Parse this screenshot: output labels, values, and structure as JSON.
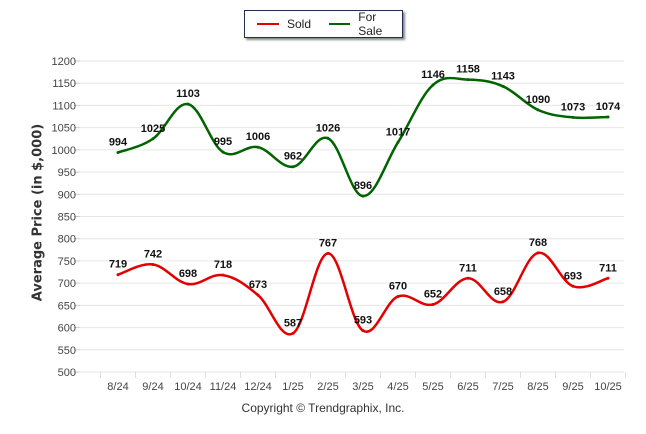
{
  "chart_data": {
    "type": "line",
    "title": "",
    "xlabel": "",
    "ylabel": "Average Price (in $,000)",
    "ylim": [
      500,
      1200
    ],
    "yticks": [
      500,
      550,
      600,
      650,
      700,
      750,
      800,
      850,
      900,
      950,
      1000,
      1050,
      1100,
      1150,
      1200
    ],
    "grid": true,
    "legend_position": "top-center",
    "categories": [
      "8/24",
      "9/24",
      "10/24",
      "11/24",
      "12/24",
      "1/25",
      "2/25",
      "3/25",
      "4/25",
      "5/25",
      "6/25",
      "7/25",
      "8/25",
      "9/25",
      "10/25"
    ],
    "series": [
      {
        "name": "Sold",
        "color": "#e30000",
        "values": [
          719,
          742,
          698,
          718,
          673,
          587,
          767,
          593,
          670,
          652,
          711,
          658,
          768,
          693,
          711
        ]
      },
      {
        "name": "For Sale",
        "color": "#006400",
        "values": [
          994,
          1025,
          1103,
          995,
          1006,
          962,
          1026,
          896,
          1017,
          1146,
          1158,
          1143,
          1090,
          1073,
          1074
        ]
      }
    ],
    "footer": "Copyright © Trendgraphix, Inc."
  }
}
